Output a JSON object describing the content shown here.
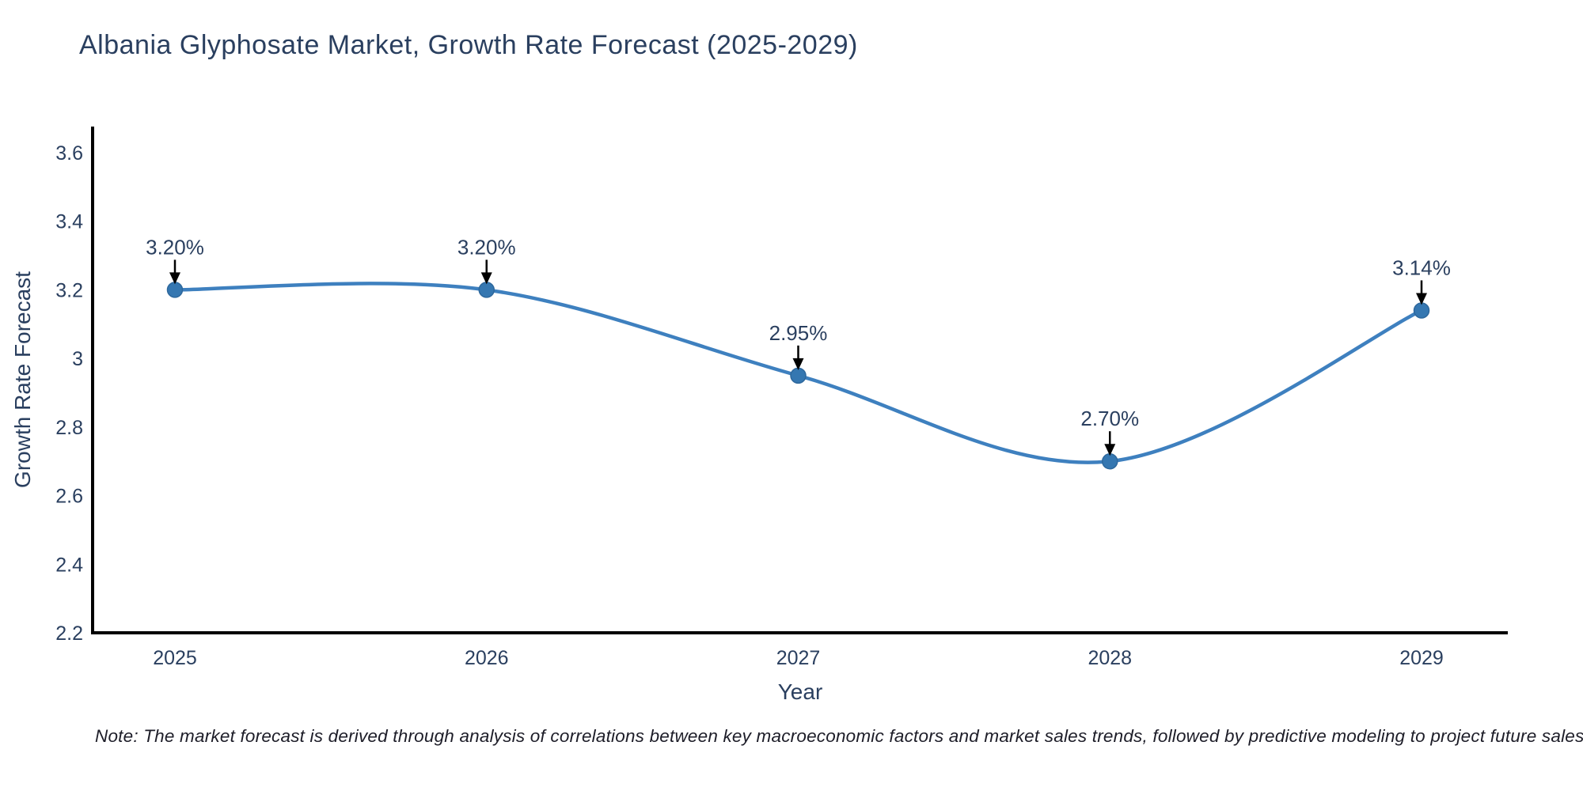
{
  "title": "Albania Glyphosate Market, Growth Rate Forecast (2025-2029)",
  "note": "Note: The market forecast is derived through analysis of correlations between key macroeconomic factors and market sales trends, followed by predictive modeling to project future sales",
  "colors": {
    "line": "#3e80bf",
    "marker_fill": "#3577b1",
    "marker_stroke": "#2e689d",
    "text": "#2a3f5f",
    "axis": "#000000",
    "arrow": "#000000",
    "note_text": "#1d1d28",
    "background": "#ffffff"
  },
  "chart_data": {
    "type": "line",
    "line_shape": "spline",
    "title": "Albania Glyphosate Market, Growth Rate Forecast (2025-2029)",
    "xlabel": "Year",
    "ylabel": "Growth Rate Forecast",
    "x": [
      2025,
      2026,
      2027,
      2028,
      2029
    ],
    "x_tick_labels": [
      "2025",
      "2026",
      "2027",
      "2028",
      "2029"
    ],
    "series": [
      {
        "name": "Growth Rate Forecast",
        "values": [
          3.2,
          3.2,
          2.95,
          2.7,
          3.14
        ],
        "point_labels": [
          "3.20%",
          "3.20%",
          "2.95%",
          "2.70%",
          "3.14%"
        ]
      }
    ],
    "y_ticks": [
      2.2,
      2.4,
      2.6,
      2.8,
      3,
      3.2,
      3.4,
      3.6
    ],
    "y_tick_labels": [
      "2.2",
      "2.4",
      "2.6",
      "2.8",
      "3",
      "3.2",
      "3.4",
      "3.6"
    ],
    "ylim": [
      2.2,
      3.68
    ],
    "xlim": [
      2024.74,
      2029.28
    ],
    "grid": false,
    "legend": "none",
    "annotations_have_arrows": true
  }
}
